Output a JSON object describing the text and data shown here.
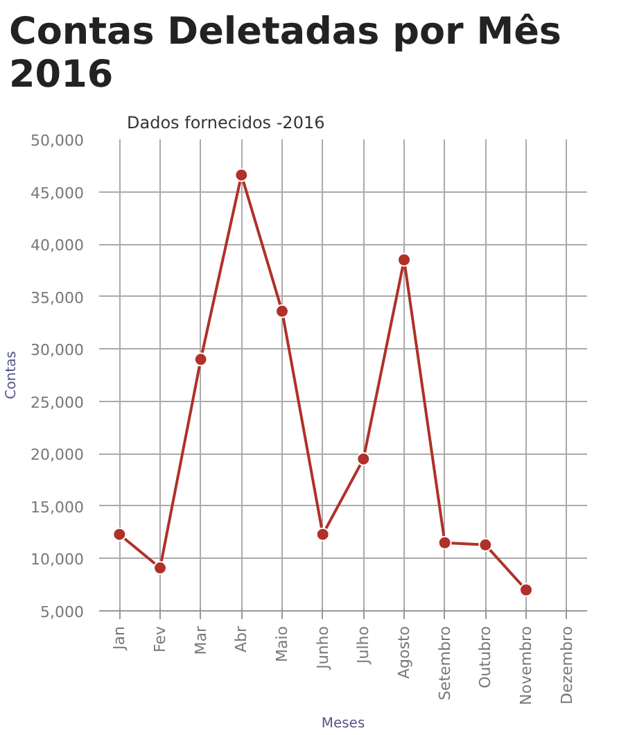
{
  "chart_data": {
    "type": "line",
    "title": "Contas Deletadas por Mês 2016",
    "subtitle": "Dados fornecidos -2016",
    "xlabel": "Meses",
    "ylabel": "Contas",
    "categories": [
      "Jan",
      "Fev",
      "Mar",
      "Abr",
      "Maio",
      "Junho",
      "Julho",
      "Agosto",
      "Setembro",
      "Outubro",
      "Novembro",
      "Dezembro"
    ],
    "series": [
      {
        "color": "#b0302a",
        "values": [
          12300,
          9100,
          29000,
          46600,
          33600,
          12300,
          19500,
          38500,
          11500,
          11300,
          7000,
          null
        ]
      }
    ],
    "ylim": [
      5000,
      50000
    ],
    "yticks": [
      {
        "value": 5000,
        "label": "5,000"
      },
      {
        "value": 10000,
        "label": "10,000"
      },
      {
        "value": 15000,
        "label": "15,000"
      },
      {
        "value": 20000,
        "label": "20,000"
      },
      {
        "value": 25000,
        "label": "25,000"
      },
      {
        "value": 30000,
        "label": "30,000"
      },
      {
        "value": 35000,
        "label": "35,000"
      },
      {
        "value": 40000,
        "label": "40,000"
      },
      {
        "value": 45000,
        "label": "45,000"
      },
      {
        "value": 50000,
        "label": "50,000"
      }
    ],
    "grid": true,
    "marker": "circle",
    "line_style": "solid"
  }
}
